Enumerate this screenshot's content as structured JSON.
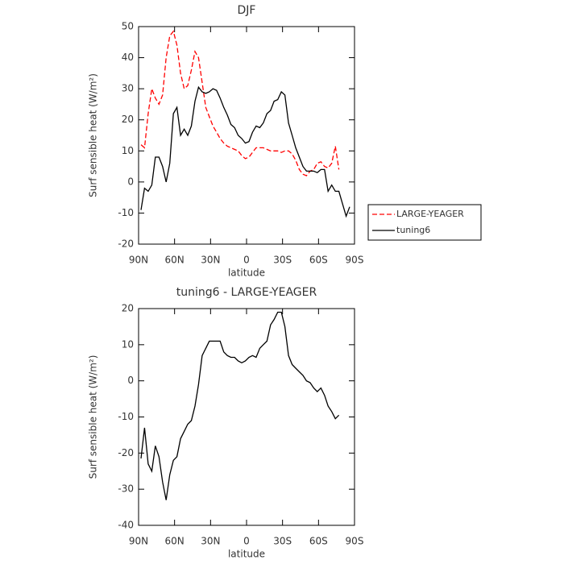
{
  "chart_data": [
    {
      "type": "line",
      "title": "DJF",
      "xlabel": "latitude",
      "ylabel": "Surf sensible heat (W/m²)",
      "x": [
        88,
        85,
        82,
        79,
        76,
        73,
        70,
        67,
        64,
        61,
        58,
        55,
        52,
        49,
        46,
        43,
        40,
        37,
        34,
        31,
        28,
        25,
        22,
        19,
        16,
        13,
        10,
        7,
        4,
        1,
        -2,
        -5,
        -8,
        -11,
        -14,
        -17,
        -20,
        -23,
        -26,
        -29,
        -32,
        -35,
        -38,
        -41,
        -44,
        -47,
        -50,
        -53,
        -56,
        -59,
        -62,
        -65,
        -68,
        -71,
        -74,
        -77,
        -80,
        -83,
        -86
      ],
      "series": [
        {
          "name": "LARGE-YEAGER",
          "color": "#ff0000",
          "dash": true,
          "values": [
            12,
            11,
            22,
            30,
            27,
            25,
            28,
            40,
            47,
            48.5,
            44,
            35,
            30,
            31,
            36,
            42,
            40,
            32,
            24,
            21,
            18,
            16,
            14,
            12.5,
            11.5,
            11,
            10.5,
            10,
            8.5,
            7.5,
            8,
            9.5,
            11,
            11,
            11,
            10.5,
            10,
            10,
            10,
            9.5,
            10,
            10,
            9,
            7,
            4,
            2.5,
            2,
            3.5,
            4,
            6,
            6.5,
            5,
            4.5,
            6,
            11.5,
            4,
            null,
            null,
            null
          ]
        },
        {
          "name": "tuning6",
          "color": "#000000",
          "dash": false,
          "values": [
            -9,
            -2,
            -3,
            -1,
            8,
            8,
            5,
            0,
            6,
            22,
            24,
            15,
            17,
            15,
            18,
            26,
            30.5,
            29,
            28.5,
            29,
            30,
            29.5,
            27,
            24,
            21.5,
            18.5,
            17.5,
            15,
            14,
            12.5,
            13,
            16,
            18,
            17.5,
            19,
            22,
            23,
            26,
            26.5,
            29,
            28,
            19,
            15,
            11,
            8,
            5,
            3.5,
            3.5,
            3.5,
            3,
            4,
            4,
            -3,
            -1,
            -3,
            -3,
            -7,
            -11,
            -8
          ]
        }
      ],
      "xlim": [
        90,
        -90
      ],
      "xticks": [
        {
          "value": 90,
          "label": "90N"
        },
        {
          "value": 60,
          "label": "60N"
        },
        {
          "value": 30,
          "label": "30N"
        },
        0,
        {
          "value": -30,
          "label": "30S"
        },
        {
          "value": -60,
          "label": "60S"
        },
        {
          "value": -90,
          "label": "90S"
        }
      ],
      "ylim": [
        -20,
        50
      ],
      "yticks": [
        -20,
        -10,
        0,
        10,
        20,
        30,
        40,
        50
      ],
      "legend": "outside-right"
    },
    {
      "type": "line",
      "title": "tuning6 - LARGE-YEAGER",
      "xlabel": "latitude",
      "ylabel": "Surf sensible heat (W/m²)",
      "x": [
        88,
        85,
        82,
        79,
        76,
        73,
        70,
        67,
        64,
        61,
        58,
        55,
        52,
        49,
        46,
        43,
        40,
        37,
        34,
        31,
        28,
        25,
        22,
        19,
        16,
        13,
        10,
        7,
        4,
        1,
        -2,
        -5,
        -8,
        -11,
        -14,
        -17,
        -20,
        -23,
        -26,
        -29,
        -32,
        -35,
        -38,
        -41,
        -44,
        -47,
        -50,
        -53,
        -56,
        -59,
        -62,
        -65,
        -68,
        -71,
        -74,
        -77,
        -80,
        -83,
        -86
      ],
      "series": [
        {
          "color": "#000000",
          "dash": false,
          "values": [
            -21.5,
            -13,
            -23,
            -25,
            -18,
            -21,
            -28,
            -33,
            -26,
            -22,
            -21,
            -16,
            -14,
            -12,
            -11,
            -7,
            -1,
            7,
            9,
            11,
            11,
            11,
            11,
            8,
            7,
            6.5,
            6.5,
            5.5,
            5,
            5.5,
            6.5,
            7,
            6.5,
            9,
            10,
            11,
            15.5,
            17,
            19,
            19,
            15,
            7,
            4.5,
            3.5,
            2.5,
            1.5,
            0,
            -0.5,
            -2,
            -3,
            -2,
            -4,
            -7,
            -8.5,
            -10.5,
            -9.5,
            null,
            null,
            null
          ]
        }
      ],
      "xlim": [
        90,
        -90
      ],
      "xticks": [
        {
          "value": 90,
          "label": "90N"
        },
        {
          "value": 60,
          "label": "60N"
        },
        {
          "value": 30,
          "label": "30N"
        },
        0,
        {
          "value": -30,
          "label": "30S"
        },
        {
          "value": -60,
          "label": "60S"
        },
        {
          "value": -90,
          "label": "90S"
        }
      ],
      "ylim": [
        -40,
        20
      ],
      "yticks": [
        -40,
        -30,
        -20,
        -10,
        0,
        10,
        20
      ]
    }
  ]
}
